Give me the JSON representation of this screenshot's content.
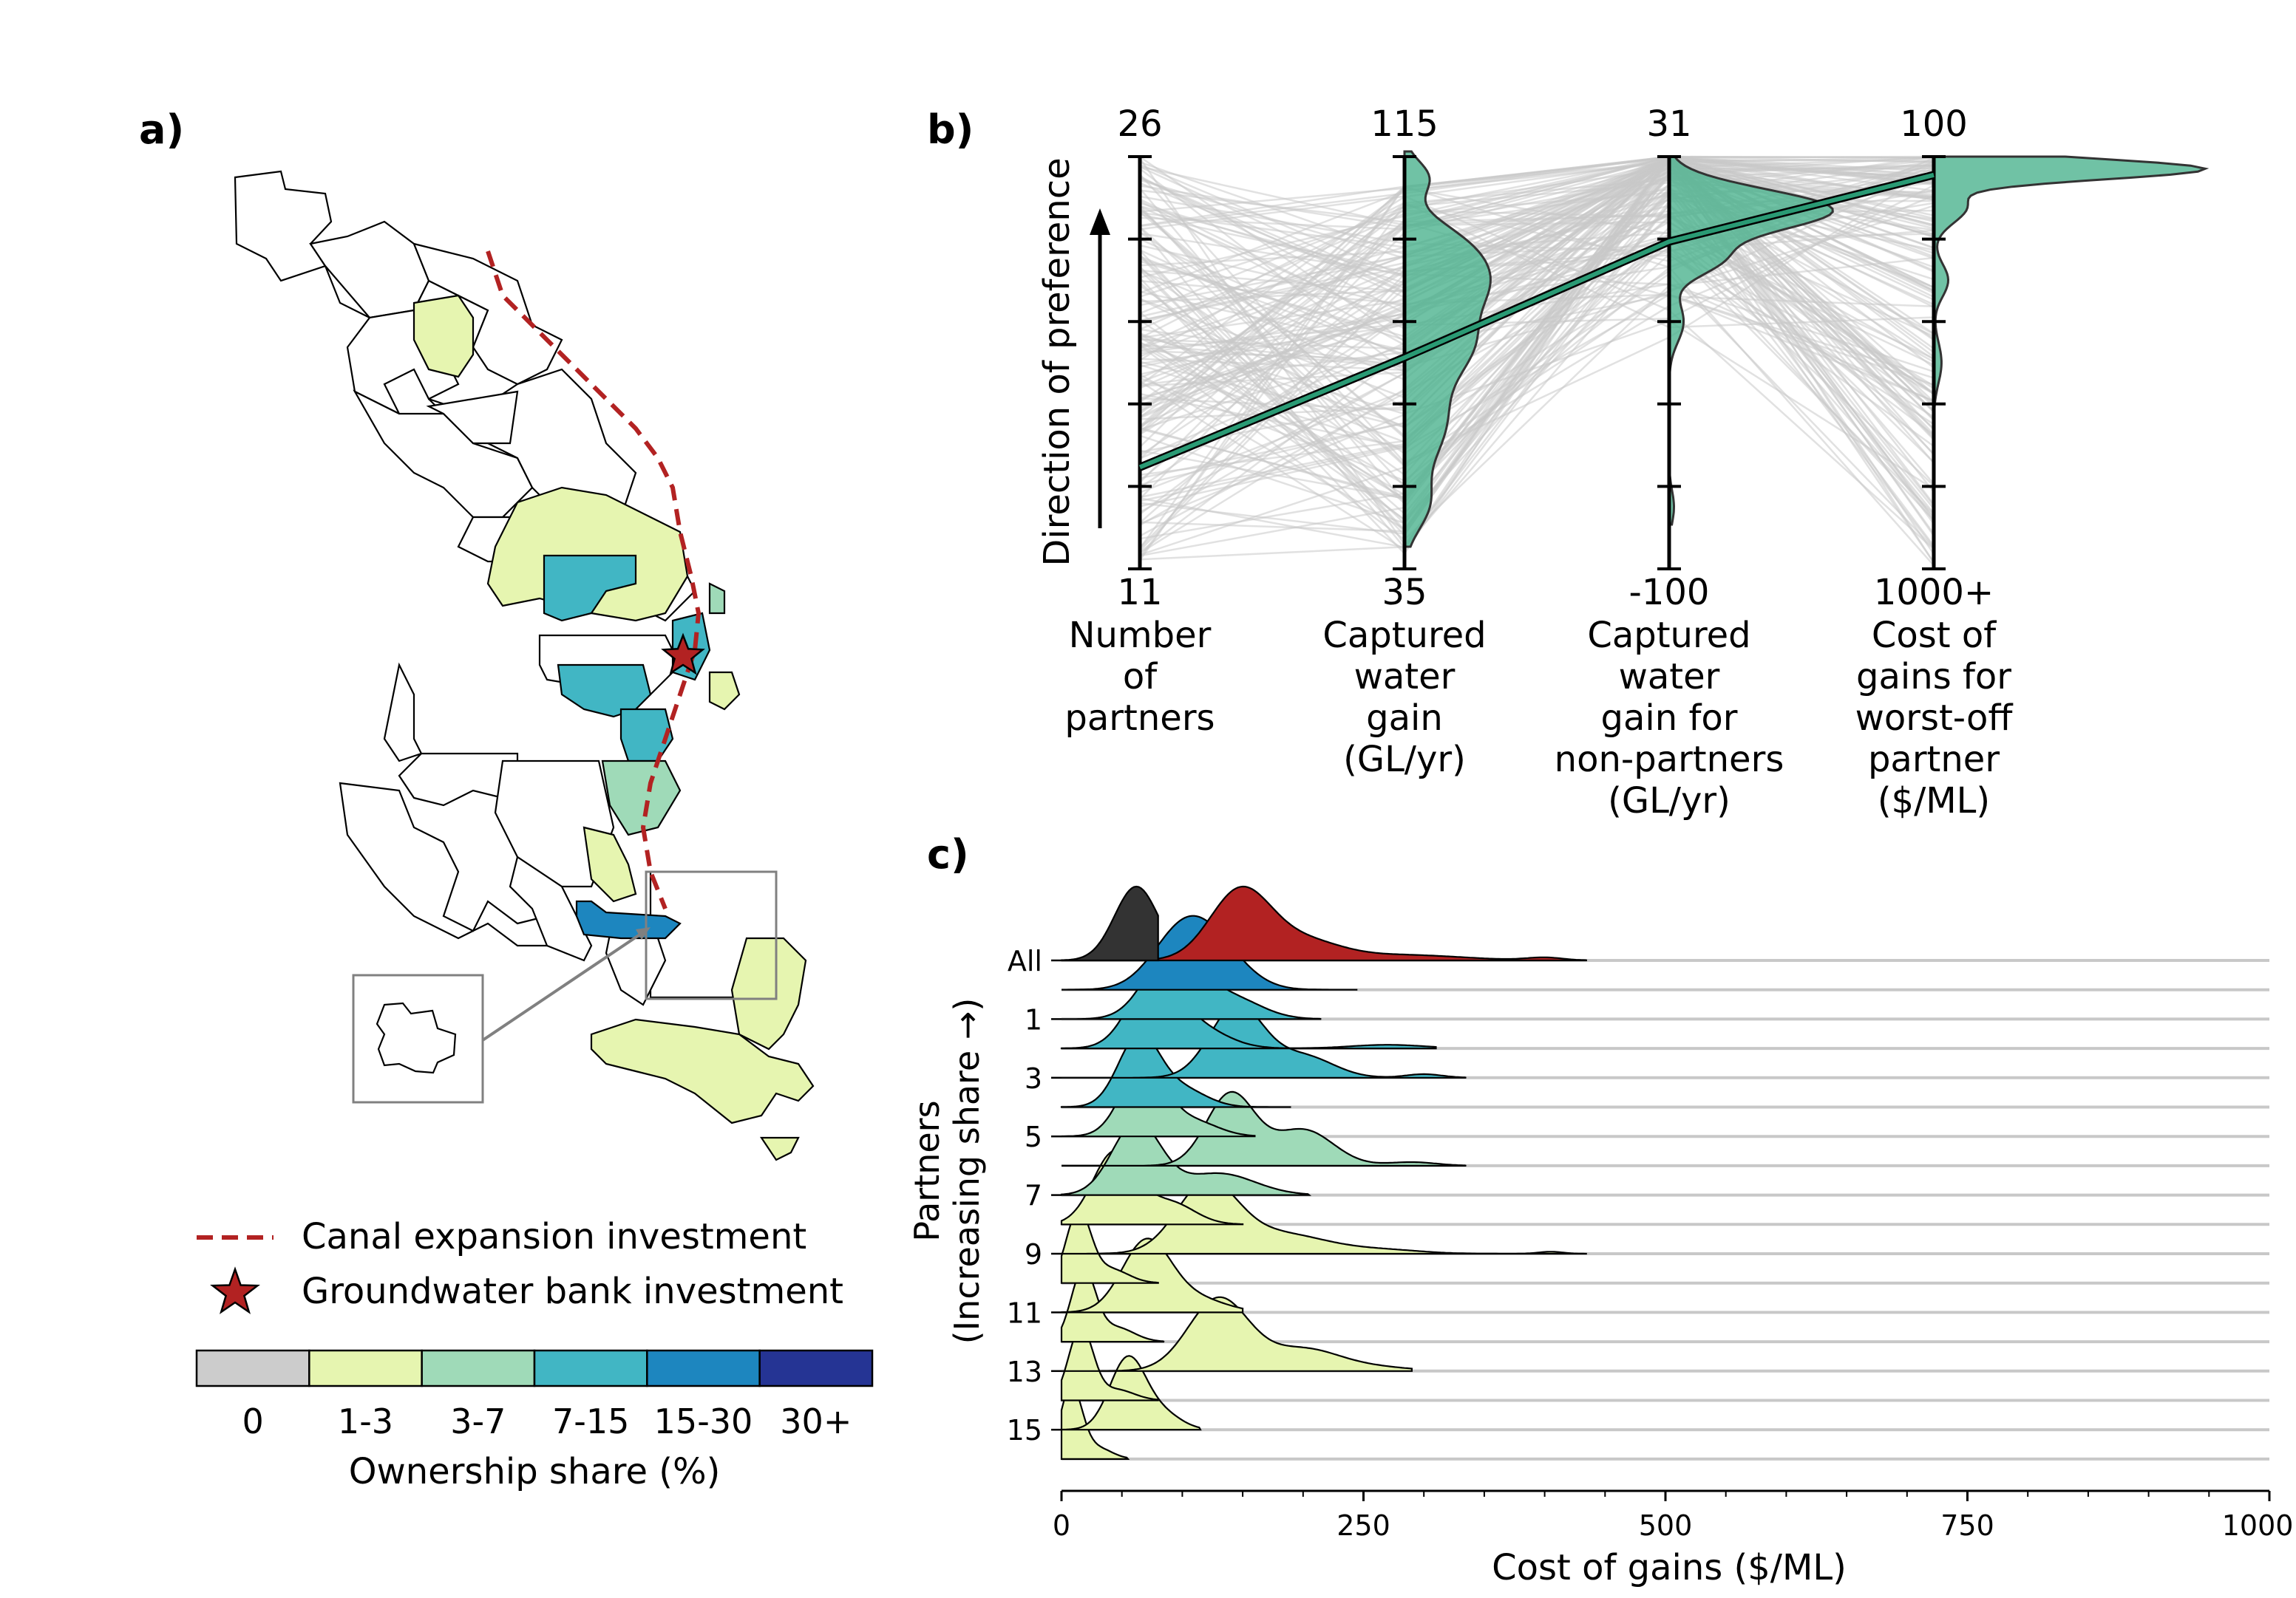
{
  "panels": {
    "a": "a)",
    "b": "b)",
    "c": "c)"
  },
  "colors": {
    "canal": "#b22222",
    "star": "#b22222",
    "parallel_axis_fill": "#4cb38f",
    "parallel_line": "#2a9a74",
    "background_lines": "#c8c8c8",
    "all_black": "#333333",
    "all_red": "#b22222"
  },
  "map_legend": {
    "canal_label": "Canal expansion investment",
    "gwb_label": "Groundwater bank investment",
    "colorbar_title": "Ownership share (%)",
    "bins": [
      {
        "label": "0",
        "color": "#cccccc"
      },
      {
        "label": "1-3",
        "color": "#e6f5b0"
      },
      {
        "label": "3-7",
        "color": "#9fdab8"
      },
      {
        "label": "7-15",
        "color": "#41b6c4"
      },
      {
        "label": "15-30",
        "color": "#1d86bf"
      },
      {
        "label": "30+",
        "color": "#253494"
      }
    ]
  },
  "chart_data": [
    {
      "type": "parallel_coordinates",
      "panel": "b",
      "ylabel": "Direction of preference",
      "axes": [
        {
          "label_lines": [
            "Number",
            "of",
            "partners"
          ],
          "top": "26",
          "bottom": "11",
          "min": 11,
          "max": 26
        },
        {
          "label_lines": [
            "Captured",
            "water",
            "gain",
            "(GL/yr)"
          ],
          "top": "115",
          "bottom": "35",
          "min": 35,
          "max": 115
        },
        {
          "label_lines": [
            "Captured",
            "water",
            "gain for",
            "non-partners",
            "(GL/yr)"
          ],
          "top": "31",
          "bottom": "-100",
          "min": -100,
          "max": 31
        },
        {
          "label_lines": [
            "Cost of",
            "gains for",
            "worst-off",
            "partner",
            "($/ML)"
          ],
          "top": "100",
          "bottom": "1000+",
          "min": 1000,
          "max": 100
        }
      ],
      "highlight_solution": [
        14.7,
        76,
        4,
        140
      ]
    },
    {
      "type": "ridgeline",
      "panel": "c",
      "xlabel": "Cost of gains ($/ML)",
      "ylabel_lines": [
        "Partners",
        "(Increasing share →)"
      ],
      "xlim": [
        0,
        1000
      ],
      "xticks": [
        "0",
        "250",
        "500",
        "750",
        "1000+"
      ],
      "row_tick_labels": [
        "All",
        "1",
        "3",
        "5",
        "7",
        "9",
        "11",
        "13",
        "15"
      ],
      "rows": [
        {
          "name": "All",
          "color": "#333333",
          "peaks": [
            [
              62,
              1.0,
              18
            ]
          ],
          "end": 80
        },
        {
          "name": "All",
          "color": "#b22222",
          "peaks": [
            [
              148,
              0.75,
              25
            ],
            [
              200,
              0.2,
              30
            ],
            [
              280,
              0.06,
              50
            ],
            [
              400,
              0.03,
              15
            ]
          ],
          "end": 435
        },
        {
          "name": "1",
          "color": "#1d86bf",
          "peaks": [
            [
              100,
              0.8,
              25
            ],
            [
              130,
              0.45,
              25
            ]
          ],
          "end": 245
        },
        {
          "name": "2",
          "color": "#41b6c4",
          "peaks": [
            [
              92,
              1.0,
              22
            ],
            [
              140,
              0.3,
              25
            ]
          ],
          "end": 215
        },
        {
          "name": "3",
          "color": "#41b6c4",
          "peaks": [
            [
              75,
              0.9,
              20
            ],
            [
              110,
              0.3,
              25
            ],
            [
              270,
              0.05,
              30
            ]
          ],
          "end": 310
        },
        {
          "name": "4",
          "color": "#41b6c4",
          "peaks": [
            [
              145,
              1.0,
              22
            ],
            [
              200,
              0.3,
              25
            ],
            [
              300,
              0.05,
              15
            ]
          ],
          "end": 335
        },
        {
          "name": "5",
          "color": "#41b6c4",
          "peaks": [
            [
              64,
              1.0,
              17
            ],
            [
              100,
              0.25,
              20
            ]
          ],
          "end": 190
        },
        {
          "name": "6",
          "color": "#9fdab8",
          "peaks": [
            [
              68,
              1.0,
              18
            ],
            [
              110,
              0.2,
              20
            ]
          ],
          "end": 160
        },
        {
          "name": "7",
          "color": "#9fdab8",
          "peaks": [
            [
              140,
              1.0,
              20
            ],
            [
              200,
              0.5,
              25
            ],
            [
              290,
              0.05,
              20
            ]
          ],
          "end": 335
        },
        {
          "name": "8",
          "color": "#9fdab8",
          "peaks": [
            [
              62,
              1.0,
              20
            ],
            [
              130,
              0.3,
              30
            ]
          ],
          "end": 205
        },
        {
          "name": "9",
          "color": "#e6f5b0",
          "peaks": [
            [
              44,
              1.0,
              18
            ],
            [
              90,
              0.3,
              20
            ]
          ],
          "end": 150
        },
        {
          "name": "10",
          "color": "#e6f5b0",
          "peaks": [
            [
              120,
              1.0,
              25
            ],
            [
              180,
              0.3,
              40
            ],
            [
              270,
              0.05,
              30
            ],
            [
              405,
              0.03,
              10
            ]
          ],
          "end": 435
        },
        {
          "name": "11",
          "color": "#e6f5b0",
          "peaks": [
            [
              14,
              1.0,
              10
            ],
            [
              40,
              0.2,
              15
            ]
          ],
          "end": 80
        },
        {
          "name": "12",
          "color": "#e6f5b0",
          "peaks": [
            [
              70,
              1.0,
              20
            ],
            [
              110,
              0.2,
              25
            ]
          ],
          "end": 150
        },
        {
          "name": "13",
          "color": "#e6f5b0",
          "peaks": [
            [
              18,
              1.0,
              10
            ],
            [
              45,
              0.2,
              15
            ]
          ],
          "end": 85
        },
        {
          "name": "14",
          "color": "#e6f5b0",
          "peaks": [
            [
              130,
              1.0,
              25
            ],
            [
              200,
              0.3,
              30
            ],
            [
              260,
              0.05,
              30
            ]
          ],
          "end": 290
        },
        {
          "name": "15",
          "color": "#e6f5b0",
          "peaks": [
            [
              16,
              1.0,
              10
            ],
            [
              45,
              0.15,
              15
            ]
          ],
          "end": 80
        },
        {
          "name": "16",
          "color": "#e6f5b0",
          "peaks": [
            [
              55,
              1.0,
              15
            ],
            [
              85,
              0.2,
              15
            ]
          ],
          "end": 115
        },
        {
          "name": "17",
          "color": "#e6f5b0",
          "peaks": [
            [
              8,
              1.0,
              9
            ],
            [
              30,
              0.15,
              12
            ]
          ],
          "end": 55
        }
      ]
    }
  ]
}
